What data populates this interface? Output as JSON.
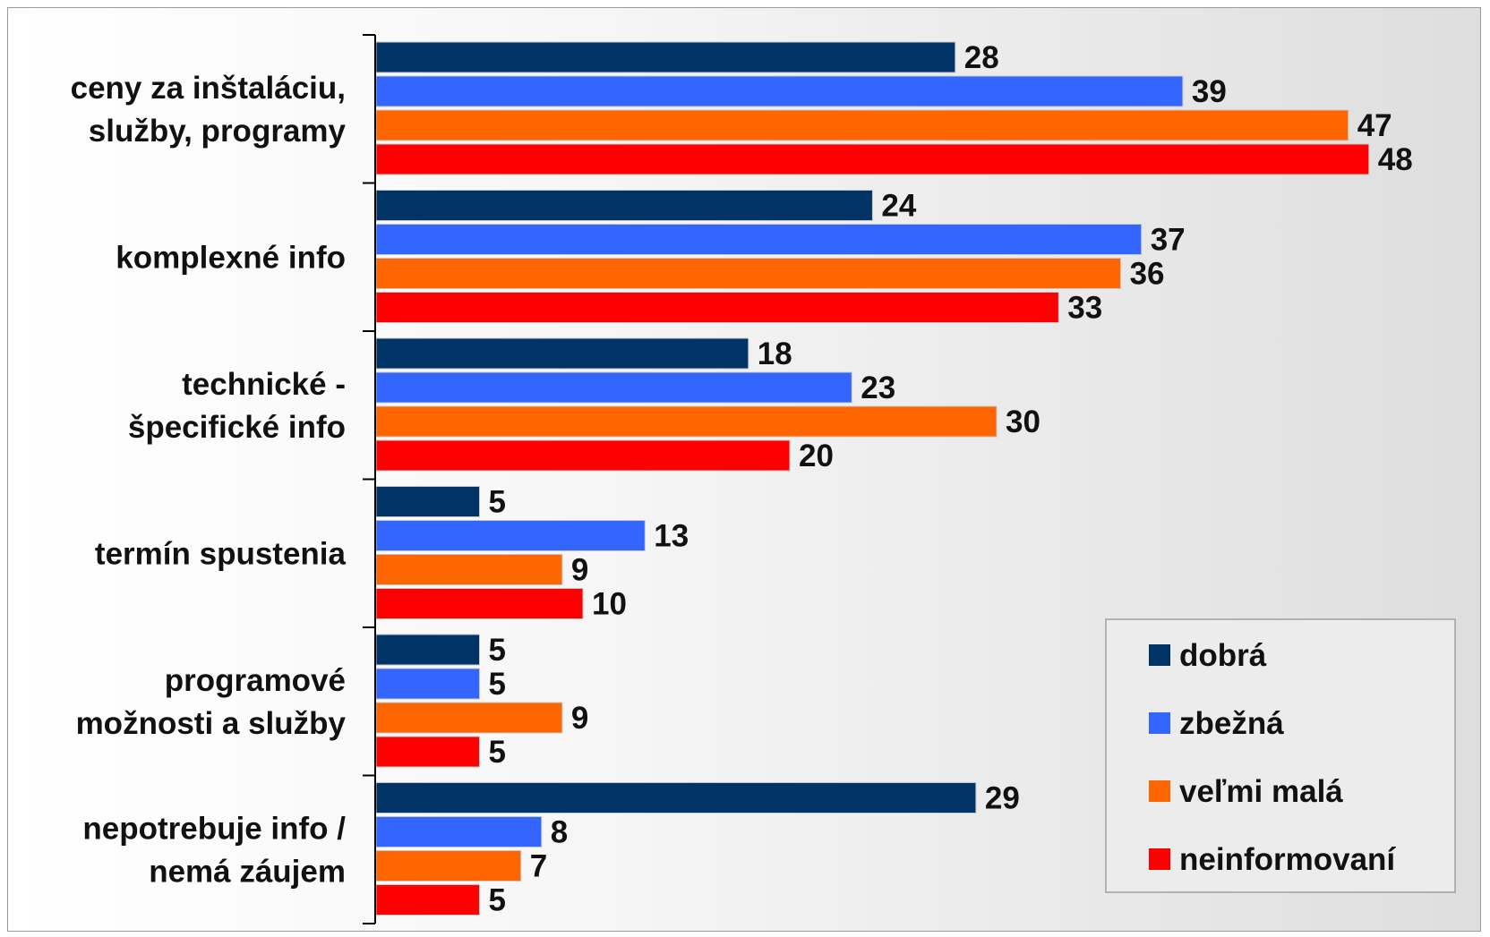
{
  "chart_data": {
    "type": "bar",
    "orientation": "horizontal",
    "title": "",
    "xlabel": "",
    "ylabel": "",
    "xlim": [
      0,
      50
    ],
    "grid": false,
    "legend_position": "bottom-right",
    "categories": [
      [
        "ceny za inštaláciu,",
        "služby, programy"
      ],
      [
        "komplexné info"
      ],
      [
        "technické -",
        "špecifické info"
      ],
      [
        "termín spustenia"
      ],
      [
        "programové",
        "možnosti a služby"
      ],
      [
        "nepotrebuje info /",
        "nemá záujem"
      ]
    ],
    "series": [
      {
        "name": "dobrá",
        "color": "#003366",
        "values": [
          28,
          24,
          18,
          5,
          5,
          29
        ]
      },
      {
        "name": "zbežná",
        "color": "#3366FF",
        "values": [
          39,
          37,
          23,
          13,
          5,
          8
        ]
      },
      {
        "name": "veľmi malá",
        "color": "#FF6600",
        "values": [
          47,
          36,
          30,
          9,
          9,
          7
        ]
      },
      {
        "name": "neinformovaní",
        "color": "#FF0000",
        "values": [
          48,
          33,
          20,
          10,
          5,
          5
        ]
      }
    ]
  }
}
